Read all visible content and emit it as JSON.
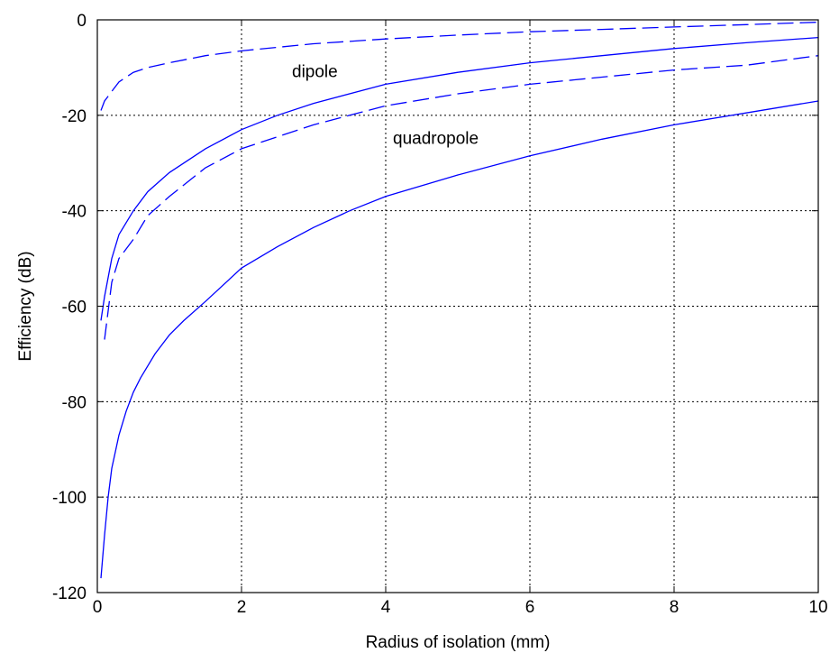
{
  "chart_data": {
    "type": "line",
    "title": "",
    "xlabel": "Radius of isolation (mm)",
    "ylabel": "Efficiency (dB)",
    "xlim": [
      0,
      10
    ],
    "ylim": [
      -120,
      0
    ],
    "x_ticks": [
      0,
      2,
      4,
      6,
      8,
      10
    ],
    "y_ticks": [
      0,
      -20,
      -40,
      -60,
      -80,
      -100,
      -120
    ],
    "x_tick_labels": [
      "0",
      "2",
      "4",
      "6",
      "8",
      "10"
    ],
    "y_tick_labels": [
      "0",
      "-20",
      "-40",
      "-60",
      "-80",
      "-100",
      "-120"
    ],
    "grid": true,
    "grid_style": "dotted",
    "line_color": "#0000ff",
    "annotations": [
      {
        "text": "dipole",
        "x": 2.7,
        "y": -12
      },
      {
        "text": "quadropole",
        "x": 4.1,
        "y": -26
      }
    ],
    "series": [
      {
        "dash": "dashed",
        "x": [
          0.05,
          0.1,
          0.2,
          0.3,
          0.5,
          0.7,
          1.0,
          1.5,
          2.0,
          3.0,
          4.0,
          5.0,
          6.0,
          7.0,
          8.0,
          9.0,
          10.0
        ],
        "y": [
          -19,
          -17,
          -15,
          -13,
          -11,
          -10,
          -9,
          -7.5,
          -6.5,
          -5,
          -4,
          -3.2,
          -2.5,
          -2,
          -1.5,
          -1,
          -0.5
        ]
      },
      {
        "dash": "solid",
        "x": [
          0.05,
          0.1,
          0.2,
          0.3,
          0.5,
          0.7,
          1.0,
          1.5,
          2.0,
          2.5,
          3.0,
          4.0,
          5.0,
          6.0,
          7.0,
          8.0,
          9.0,
          10.0
        ],
        "y": [
          -63,
          -58,
          -50,
          -45,
          -40,
          -36,
          -32,
          -27,
          -23,
          -20,
          -17.5,
          -13.5,
          -11,
          -9,
          -7.5,
          -6,
          -4.8,
          -3.7
        ]
      },
      {
        "dash": "dashed",
        "x": [
          0.1,
          0.2,
          0.3,
          0.5,
          0.7,
          1.0,
          1.5,
          2.0,
          2.5,
          3.0,
          3.5,
          4.0,
          5.0,
          6.0,
          7.0,
          8.0,
          9.0,
          10.0
        ],
        "y": [
          -67,
          -55,
          -50,
          -46,
          -41,
          -37,
          -31,
          -27,
          -24.5,
          -22,
          -20,
          -18,
          -15.5,
          -13.5,
          -12,
          -10.5,
          -9.5,
          -7.5
        ]
      },
      {
        "dash": "solid",
        "x": [
          0.05,
          0.1,
          0.15,
          0.2,
          0.3,
          0.4,
          0.5,
          0.6,
          0.8,
          1.0,
          1.2,
          1.5,
          2.0,
          2.5,
          3.0,
          3.5,
          4.0,
          5.0,
          6.0,
          7.0,
          8.0,
          9.0,
          10.0
        ],
        "y": [
          -117,
          -108,
          -100,
          -94,
          -87,
          -82,
          -78,
          -75,
          -70,
          -66,
          -63,
          -59,
          -52,
          -47.5,
          -43.5,
          -40,
          -37,
          -32.5,
          -28.5,
          -25,
          -22,
          -19.5,
          -17
        ]
      }
    ]
  }
}
